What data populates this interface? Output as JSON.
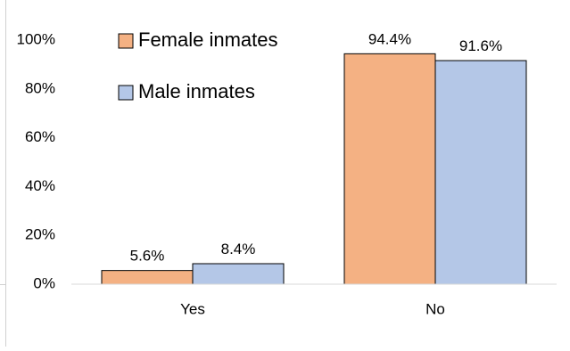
{
  "chart_data": {
    "type": "bar",
    "title": "",
    "xlabel": "",
    "ylabel": "",
    "categories": [
      "Yes",
      "No"
    ],
    "ylim": [
      0,
      100
    ],
    "yticks": [
      0,
      20,
      40,
      60,
      80,
      100
    ],
    "ytick_labels": [
      "0%",
      "20%",
      "40%",
      "60%",
      "80%",
      "100%"
    ],
    "grid": false,
    "legend_position": "top-left",
    "series": [
      {
        "name": "Female inmates",
        "values": [
          5.6,
          94.4
        ],
        "data_labels": [
          "5.6%",
          "94.4%"
        ],
        "color": "#F4B183"
      },
      {
        "name": "Male inmates",
        "values": [
          8.4,
          91.6
        ],
        "data_labels": [
          "8.4%",
          "91.6%"
        ],
        "color": "#B4C7E7"
      }
    ]
  }
}
